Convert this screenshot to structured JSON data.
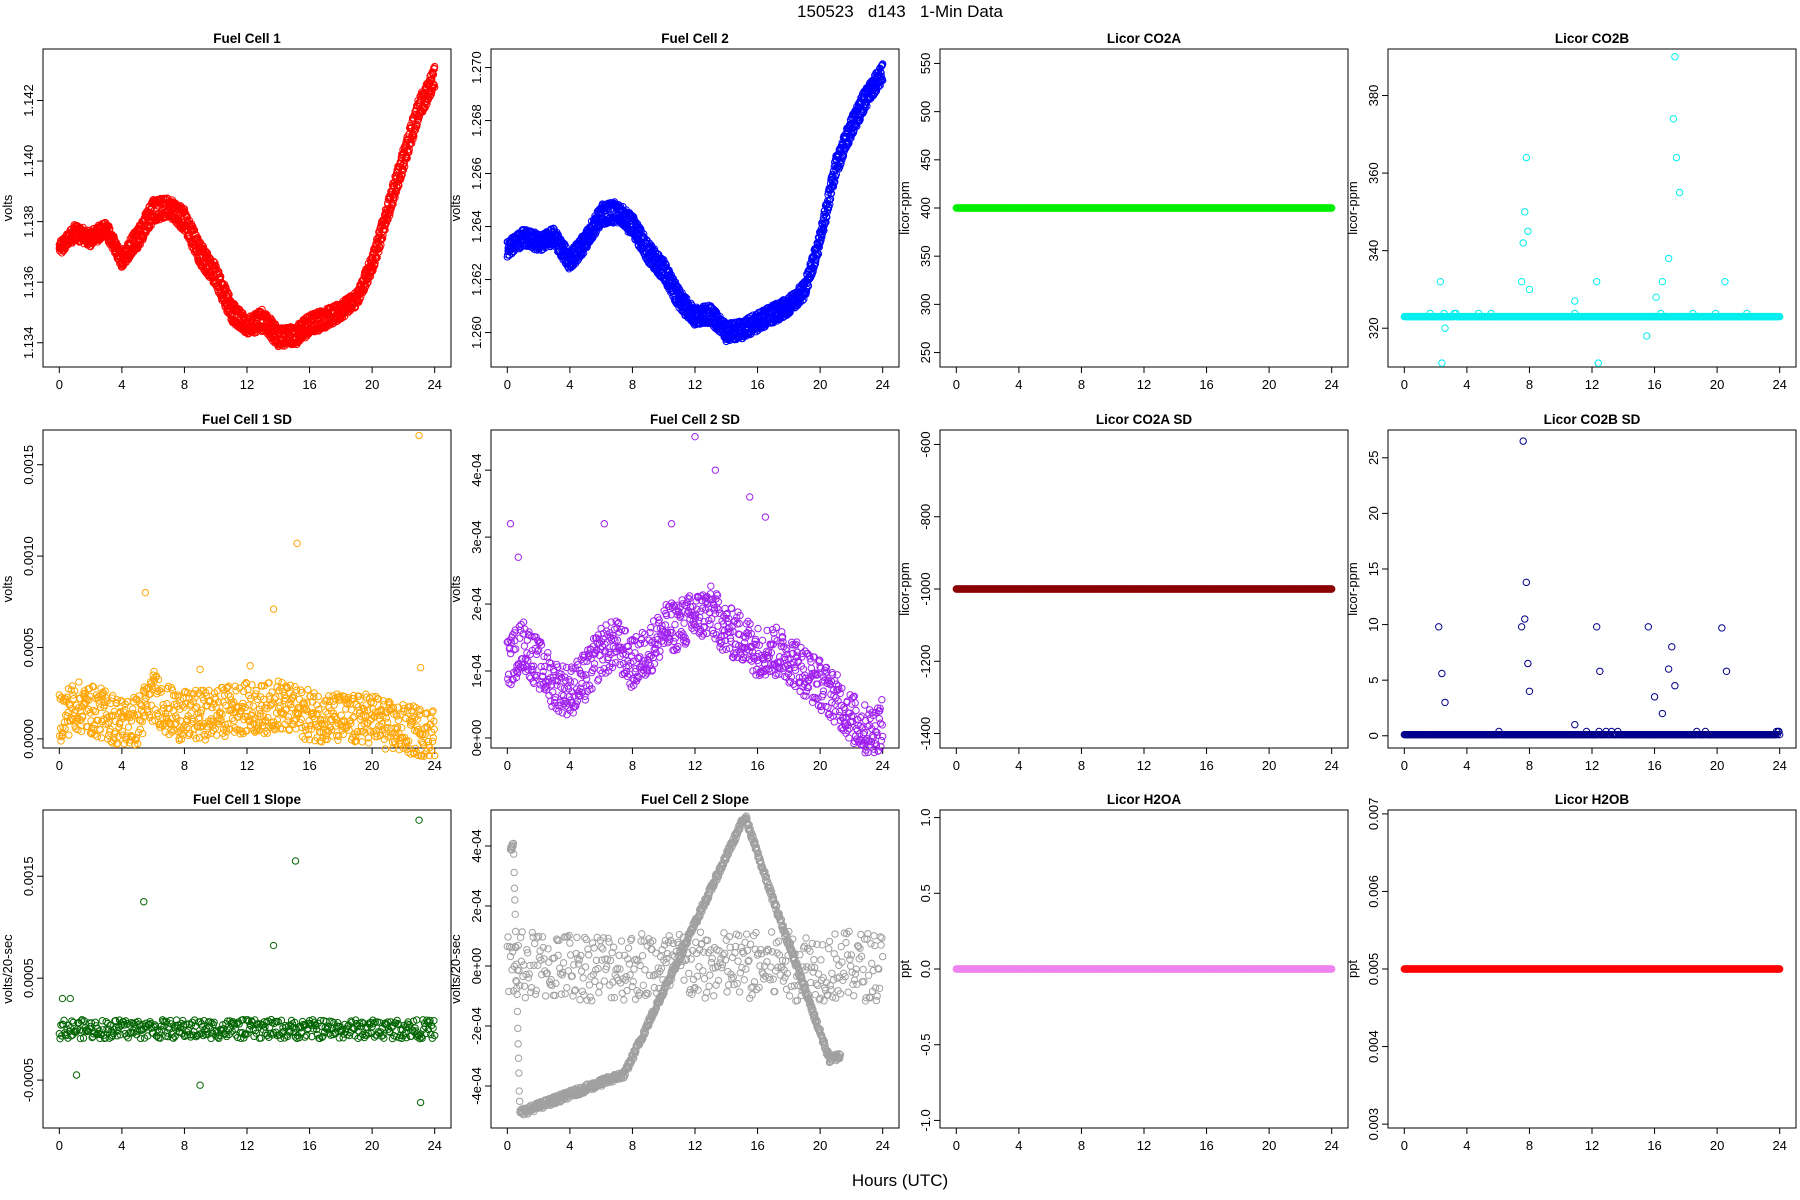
{
  "page": {
    "title": "150523   d143   1-Min Data",
    "xlabel": "Hours (UTC)"
  },
  "chart_data": [
    {
      "type": "scatter",
      "title": "Fuel Cell 1",
      "ylabel": "volts",
      "color": "#ff0000",
      "xlim": [
        0,
        24
      ],
      "ylim": [
        1.1332,
        1.1437
      ],
      "xticks": [
        0,
        4,
        8,
        12,
        16,
        20,
        24
      ],
      "xtick_labels": [
        "0",
        "4",
        "8",
        "12",
        "16",
        "20",
        "24"
      ],
      "yticks": [
        1.134,
        1.136,
        1.138,
        1.14,
        1.142
      ],
      "ytick_labels": [
        "1.134",
        "1.136",
        "1.138",
        "1.140",
        "1.142"
      ],
      "series": [
        {
          "x": [
            0,
            1,
            2,
            3,
            4,
            5,
            6,
            7,
            8,
            9,
            10,
            11,
            12,
            13,
            14,
            15,
            16,
            17,
            18,
            19,
            20,
            21,
            22,
            23,
            24
          ],
          "y": [
            1.1372,
            1.1378,
            1.1376,
            1.1379,
            1.1369,
            1.1377,
            1.1386,
            1.1387,
            1.1383,
            1.1372,
            1.1365,
            1.1353,
            1.1347,
            1.135,
            1.1344,
            1.1344,
            1.1348,
            1.135,
            1.1352,
            1.1356,
            1.1368,
            1.1386,
            1.1403,
            1.142,
            1.143
          ]
        },
        {
          "x": [
            0,
            1,
            2,
            3,
            4,
            5,
            6,
            7,
            8,
            9,
            10,
            11,
            12,
            13,
            14,
            15,
            16,
            17,
            18,
            19,
            20,
            21,
            22,
            23,
            24
          ],
          "y": [
            1.137,
            1.1375,
            1.1373,
            1.1376,
            1.1366,
            1.1372,
            1.1381,
            1.1383,
            1.1378,
            1.1367,
            1.136,
            1.1348,
            1.1344,
            1.1345,
            1.134,
            1.134,
            1.1344,
            1.1346,
            1.1349,
            1.1353,
            1.1364,
            1.1381,
            1.1398,
            1.1415,
            1.1425
          ]
        }
      ]
    },
    {
      "type": "scatter",
      "title": "Fuel Cell 2",
      "ylabel": "volts",
      "color": "#0000ff",
      "xlim": [
        0,
        24
      ],
      "ylim": [
        1.2587,
        1.2707
      ],
      "xticks": [
        0,
        4,
        8,
        12,
        16,
        20,
        24
      ],
      "xtick_labels": [
        "0",
        "4",
        "8",
        "12",
        "16",
        "20",
        "24"
      ],
      "yticks": [
        1.26,
        1.262,
        1.264,
        1.266,
        1.268,
        1.27
      ],
      "ytick_labels": [
        "1.260",
        "1.262",
        "1.264",
        "1.266",
        "1.268",
        "1.270"
      ],
      "series": [
        {
          "x": [
            0,
            1,
            2,
            3,
            4,
            5,
            6,
            7,
            8,
            9,
            10,
            11,
            12,
            13,
            14,
            15,
            16,
            17,
            18,
            19,
            20,
            21,
            22,
            23,
            24
          ],
          "y": [
            1.2633,
            1.2638,
            1.2636,
            1.2638,
            1.2629,
            1.2637,
            1.2647,
            1.2648,
            1.2643,
            1.2633,
            1.2626,
            1.2615,
            1.2608,
            1.2609,
            1.2602,
            1.2603,
            1.2606,
            1.2609,
            1.2612,
            1.2618,
            1.2637,
            1.2665,
            1.268,
            1.2692,
            1.27
          ]
        },
        {
          "x": [
            0,
            1,
            2,
            3,
            4,
            5,
            6,
            7,
            8,
            9,
            10,
            11,
            12,
            13,
            14,
            15,
            16,
            17,
            18,
            19,
            20,
            21,
            22,
            23,
            24
          ],
          "y": [
            1.263,
            1.2634,
            1.2632,
            1.2634,
            1.2625,
            1.2632,
            1.2642,
            1.2643,
            1.2638,
            1.2628,
            1.2621,
            1.261,
            1.2604,
            1.2605,
            1.2598,
            1.2599,
            1.2602,
            1.2605,
            1.2608,
            1.2614,
            1.2633,
            1.266,
            1.2675,
            1.2687,
            1.2696
          ]
        }
      ]
    },
    {
      "type": "scatter",
      "title": "Licor CO2A",
      "ylabel": "licor-ppm",
      "color": "#00ee00",
      "xlim": [
        0,
        24
      ],
      "ylim": [
        235,
        565
      ],
      "xticks": [
        0,
        4,
        8,
        12,
        16,
        20,
        24
      ],
      "xtick_labels": [
        "0",
        "4",
        "8",
        "12",
        "16",
        "20",
        "24"
      ],
      "yticks": [
        250,
        300,
        350,
        400,
        450,
        500,
        550
      ],
      "ytick_labels": [
        "250",
        "300",
        "350",
        "400",
        "450",
        "500",
        "550"
      ],
      "series": [
        {
          "x": [
            0,
            24
          ],
          "y": [
            400,
            400
          ]
        }
      ]
    },
    {
      "type": "scatter",
      "title": "Licor CO2B",
      "ylabel": "licor-ppm",
      "color": "#00eeee",
      "xlim": [
        0,
        24
      ],
      "ylim": [
        310,
        392
      ],
      "xticks": [
        0,
        4,
        8,
        12,
        16,
        20,
        24
      ],
      "xtick_labels": [
        "0",
        "4",
        "8",
        "12",
        "16",
        "20",
        "24"
      ],
      "yticks": [
        320,
        340,
        360,
        380
      ],
      "ytick_labels": [
        "320",
        "340",
        "360",
        "380"
      ],
      "series": [
        {
          "x": [
            0,
            24
          ],
          "y": [
            323,
            323
          ]
        },
        {
          "x": [
            2.3,
            2.4,
            2.6,
            7.5,
            7.6,
            7.7,
            7.8,
            7.9,
            8.0,
            10.9,
            12.3,
            12.4,
            15.5,
            16.1,
            16.5,
            16.9,
            17.2,
            17.3,
            17.4,
            17.6,
            20.5
          ],
          "y": [
            332,
            311,
            320,
            332,
            342,
            350,
            364,
            345,
            330,
            327,
            332,
            311,
            318,
            328,
            332,
            338,
            374,
            390,
            364,
            355,
            332
          ]
        }
      ]
    },
    {
      "type": "scatter",
      "title": "Fuel Cell 1 SD",
      "ylabel": "volts",
      "color": "#ffa500",
      "xlim": [
        0,
        24
      ],
      "ylim": [
        -5e-05,
        0.00169
      ],
      "xticks": [
        0,
        4,
        8,
        12,
        16,
        20,
        24
      ],
      "xtick_labels": [
        "0",
        "4",
        "8",
        "12",
        "16",
        "20",
        "24"
      ],
      "yticks": [
        0.0,
        0.0005,
        0.001,
        0.0015
      ],
      "ytick_labels": [
        "0.0000",
        "0.0005",
        "0.0010",
        "0.0015"
      ],
      "series": [
        {
          "x": [
            0,
            1,
            2,
            3,
            4,
            5,
            6,
            7,
            8,
            9,
            10,
            11,
            12,
            13,
            14,
            15,
            16,
            17,
            18,
            19,
            20,
            21,
            22,
            23,
            24
          ],
          "y": [
            0.00012,
            0.00018,
            0.00016,
            0.00013,
            9e-05,
            0.0001,
            0.00024,
            0.00015,
            0.00012,
            0.00013,
            0.00014,
            0.00016,
            0.00017,
            0.00016,
            0.00019,
            0.00015,
            0.00013,
            0.00012,
            0.00011,
            0.0001,
            0.00012,
            7e-05,
            5e-05,
            4e-05,
            4e-05
          ]
        },
        {
          "x": [
            5.5,
            9.0,
            12.2,
            13.7,
            15.2,
            23.0,
            23.1
          ],
          "y": [
            0.0008,
            0.00038,
            0.0004,
            0.00071,
            0.00107,
            0.00166,
            0.00039
          ]
        }
      ]
    },
    {
      "type": "scatter",
      "title": "Fuel Cell 2 SD",
      "ylabel": "volts",
      "color": "#a020f0",
      "xlim": [
        0,
        24
      ],
      "ylim": [
        -1.5e-05,
        0.00046
      ],
      "xticks": [
        0,
        4,
        8,
        12,
        16,
        20,
        24
      ],
      "xtick_labels": [
        "0",
        "4",
        "8",
        "12",
        "16",
        "20",
        "24"
      ],
      "yticks": [
        0,
        0.0001,
        0.0002,
        0.0003,
        0.0004
      ],
      "ytick_labels": [
        "0e+00",
        "1e-04",
        "2e-04",
        "3e-04",
        "4e-04"
      ],
      "series": [
        {
          "x": [
            0,
            1,
            2,
            3,
            4,
            5,
            6,
            7,
            8,
            9,
            10,
            11,
            12,
            13,
            14,
            15,
            16,
            17,
            18,
            19,
            20,
            21,
            22,
            23,
            24
          ],
          "y": [
            0.00011,
            0.00014,
            0.00011,
            8e-05,
            7e-05,
            9e-05,
            0.00013,
            0.00014,
            0.00011,
            0.00013,
            0.00016,
            0.00017,
            0.00018,
            0.00019,
            0.00016,
            0.00015,
            0.00013,
            0.00013,
            0.00012,
            0.0001,
            8e-05,
            6e-05,
            3e-05,
            1e-05,
            2e-05
          ]
        },
        {
          "x": [
            0.2,
            0.7,
            6.2,
            10.5,
            12.0,
            13.3,
            15.5,
            16.5
          ],
          "y": [
            0.00032,
            0.00027,
            0.00032,
            0.00032,
            0.00045,
            0.0004,
            0.00036,
            0.00033
          ]
        }
      ]
    },
    {
      "type": "scatter",
      "title": "Licor CO2A SD",
      "ylabel": "licor-ppm",
      "color": "#8b0000",
      "xlim": [
        0,
        24
      ],
      "ylim": [
        -1440,
        -560
      ],
      "xticks": [
        0,
        4,
        8,
        12,
        16,
        20,
        24
      ],
      "xtick_labels": [
        "0",
        "4",
        "8",
        "12",
        "16",
        "20",
        "24"
      ],
      "yticks": [
        -1400,
        -1200,
        -1000,
        -800,
        -600
      ],
      "ytick_labels": [
        "-1400",
        "-1200",
        "-1000",
        "-800",
        "-600"
      ],
      "series": [
        {
          "x": [
            0,
            24
          ],
          "y": [
            -1000,
            -1000
          ]
        }
      ]
    },
    {
      "type": "scatter",
      "title": "Licor CO2B SD",
      "ylabel": "licor-ppm",
      "color": "#00008b",
      "xlim": [
        0,
        24
      ],
      "ylim": [
        -1.1,
        27.5
      ],
      "xticks": [
        0,
        4,
        8,
        12,
        16,
        20,
        24
      ],
      "xtick_labels": [
        "0",
        "4",
        "8",
        "12",
        "16",
        "20",
        "24"
      ],
      "yticks": [
        0,
        5,
        10,
        15,
        20,
        25
      ],
      "ytick_labels": [
        "0",
        "5",
        "10",
        "15",
        "20",
        "25"
      ],
      "series": [
        {
          "x": [
            0,
            24
          ],
          "y": [
            0.1,
            0.1
          ]
        },
        {
          "x": [
            2.2,
            2.4,
            2.6,
            7.5,
            7.6,
            7.7,
            7.8,
            7.9,
            8.0,
            10.9,
            12.3,
            12.5,
            15.6,
            16.0,
            16.5,
            16.9,
            17.1,
            17.3,
            20.3,
            20.6
          ],
          "y": [
            9.8,
            5.6,
            3.0,
            9.8,
            26.5,
            10.5,
            13.8,
            6.5,
            4.0,
            1.0,
            9.8,
            5.8,
            9.8,
            3.5,
            2.0,
            6.0,
            8.0,
            4.5,
            9.7,
            5.8
          ]
        }
      ]
    },
    {
      "type": "scatter",
      "title": "Fuel Cell 1 Slope",
      "ylabel": "volts/20-sec",
      "color": "#006400",
      "xlim": [
        0,
        24
      ],
      "ylim": [
        -0.00097,
        0.00215
      ],
      "xticks": [
        0,
        4,
        8,
        12,
        16,
        20,
        24
      ],
      "xtick_labels": [
        "0",
        "4",
        "8",
        "12",
        "16",
        "20",
        "24"
      ],
      "yticks": [
        -0.0005,
        0.0005,
        0.0015
      ],
      "ytick_labels": [
        "-0.0005",
        "0.0005",
        "0.0015"
      ],
      "series": [
        {
          "x": [
            0,
            24
          ],
          "y": [
            0.0,
            0.0
          ]
        },
        {
          "x": [
            5.4,
            9.0,
            13.7,
            15.1,
            23.0,
            23.1,
            0.2,
            0.7,
            1.1
          ],
          "y": [
            0.00125,
            -0.00055,
            0.00082,
            0.00165,
            0.00205,
            -0.00072,
            0.0003,
            0.0003,
            -0.00045
          ]
        }
      ]
    },
    {
      "type": "scatter",
      "title": "Fuel Cell 2 Slope",
      "ylabel": "volts/20-sec",
      "color": "#a0a0a0",
      "xlim": [
        0,
        24
      ],
      "ylim": [
        -0.00054,
        0.00052
      ],
      "xticks": [
        0,
        4,
        8,
        12,
        16,
        20,
        24
      ],
      "xtick_labels": [
        "0",
        "4",
        "8",
        "12",
        "16",
        "20",
        "24"
      ],
      "yticks": [
        -0.0004,
        -0.0002,
        0,
        0.0002,
        0.0004
      ],
      "ytick_labels": [
        "-4e-04",
        "-2e-04",
        "0e+00",
        "2e-04",
        "4e-04"
      ],
      "series": [
        {
          "x": [
            0,
            24
          ],
          "y": [
            0.0,
            0.0
          ]
        },
        {
          "x": [
            0.2,
            0.4,
            0.8,
            7.5,
            15.2,
            16.8,
            20.6,
            21.3
          ],
          "y": [
            0.00039,
            0.0004,
            -0.00049,
            -0.00036,
            0.0005,
            0.00025,
            -0.00031,
            -0.0003
          ]
        }
      ]
    },
    {
      "type": "scatter",
      "title": "Licor H2OA",
      "ylabel": "ppt",
      "color": "#ee82ee",
      "xlim": [
        0,
        24
      ],
      "ylim": [
        -1.05,
        1.05
      ],
      "xticks": [
        0,
        4,
        8,
        12,
        16,
        20,
        24
      ],
      "xtick_labels": [
        "0",
        "4",
        "8",
        "12",
        "16",
        "20",
        "24"
      ],
      "yticks": [
        -1.0,
        -0.5,
        0.0,
        0.5,
        1.0
      ],
      "ytick_labels": [
        "-1.0",
        "-0.5",
        "0.0",
        "0.5",
        "1.0"
      ],
      "series": [
        {
          "x": [
            0,
            24
          ],
          "y": [
            0,
            0
          ]
        }
      ]
    },
    {
      "type": "scatter",
      "title": "Licor H2OB",
      "ylabel": "ppt",
      "color": "#ff0000",
      "xlim": [
        0,
        24
      ],
      "ylim": [
        0.00295,
        0.00705
      ],
      "xticks": [
        0,
        4,
        8,
        12,
        16,
        20,
        24
      ],
      "xtick_labels": [
        "0",
        "4",
        "8",
        "12",
        "16",
        "20",
        "24"
      ],
      "yticks": [
        0.003,
        0.004,
        0.005,
        0.006,
        0.007
      ],
      "ytick_labels": [
        "0.003",
        "0.004",
        "0.005",
        "0.006",
        "0.007"
      ],
      "series": [
        {
          "x": [
            0,
            24
          ],
          "y": [
            0.005,
            0.005
          ]
        }
      ]
    }
  ]
}
